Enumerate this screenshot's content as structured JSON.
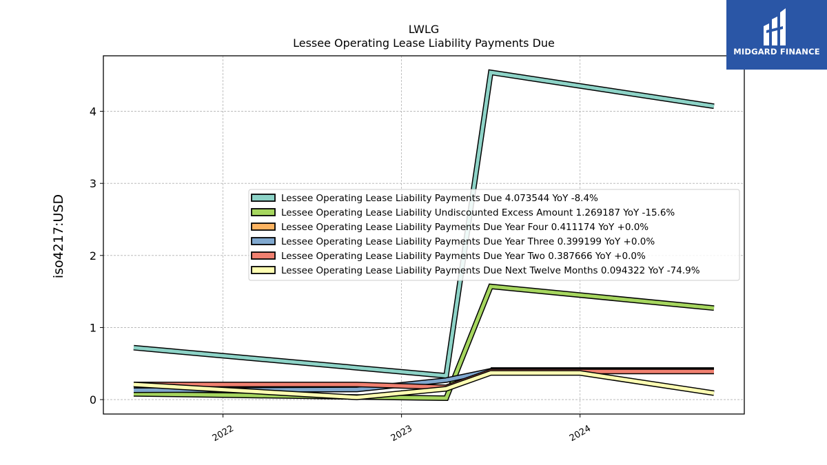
{
  "chart_data": {
    "type": "line",
    "title": "LWLG",
    "subtitle": "Lessee Operating Lease Liability Payments Due",
    "ylabel": "iso4217:USD",
    "xlabel": "",
    "ylim": [
      -0.2,
      4.77
    ],
    "xlim": [
      2021.33,
      2024.92
    ],
    "yticks": [
      0,
      1,
      2,
      3,
      4
    ],
    "xticks": [
      "2022",
      "2023",
      "2024"
    ],
    "grid": true,
    "legend_position": "center-right",
    "series": [
      {
        "name": "Lessee Operating Lease Liability Payments Due",
        "legend": "Lessee Operating Lease Liability Payments Due  4.073544 YoY -8.4%",
        "color": "#8dd3c7",
        "points": [
          [
            2021.5,
            0.72
          ],
          [
            2023.25,
            0.33
          ],
          [
            2023.5,
            4.54
          ],
          [
            2024.75,
            4.07
          ]
        ]
      },
      {
        "name": "Lessee Operating Lease Liability Undiscounted Excess Amount",
        "legend": "Lessee Operating Lease Liability Undiscounted Excess Amount  1.269187 YoY -15.6%",
        "color": "#a6d65f",
        "points": [
          [
            2021.5,
            0.08
          ],
          [
            2023.25,
            0.02
          ],
          [
            2023.5,
            1.57
          ],
          [
            2024.75,
            1.27
          ]
        ]
      },
      {
        "name": "Lessee Operating Lease Liability Payments Due Year Four",
        "legend": "Lessee Operating Lease Liability Payments Due Year Four  0.411174 YoY +0.0%",
        "color": "#fdb462",
        "points": [
          [
            2023.5,
            0.411
          ],
          [
            2024.75,
            0.411
          ]
        ]
      },
      {
        "name": "Lessee Operating Lease Liability Payments Due Year Three",
        "legend": "Lessee Operating Lease Liability Payments Due Year Three  0.399199 YoY +0.0%",
        "color": "#80a8cf",
        "points": [
          [
            2021.5,
            0.13
          ],
          [
            2022.75,
            0.14
          ],
          [
            2023.25,
            0.27
          ],
          [
            2023.5,
            0.4
          ],
          [
            2024.75,
            0.4
          ]
        ]
      },
      {
        "name": "Lessee Operating Lease Liability Payments Due Year Two",
        "legend": "Lessee Operating Lease Liability Payments Due Year Two  0.387666 YoY +0.0%",
        "color": "#f08070",
        "points": [
          [
            2021.5,
            0.21
          ],
          [
            2022.75,
            0.21
          ],
          [
            2023.25,
            0.17
          ],
          [
            2023.5,
            0.39
          ],
          [
            2024.75,
            0.39
          ]
        ]
      },
      {
        "name": "Lessee Operating Lease Liability Payments Due Next Twelve Months",
        "legend": "Lessee Operating Lease Liability Payments Due Next Twelve Months  0.094322 YoY -74.9%",
        "color": "#ffffb3",
        "points": [
          [
            2021.5,
            0.21
          ],
          [
            2022.75,
            0.03
          ],
          [
            2023.25,
            0.15
          ],
          [
            2023.5,
            0.37
          ],
          [
            2024.0,
            0.37
          ],
          [
            2024.75,
            0.09
          ]
        ]
      }
    ]
  },
  "logo": {
    "text": "MIDGARD FINANCE"
  }
}
